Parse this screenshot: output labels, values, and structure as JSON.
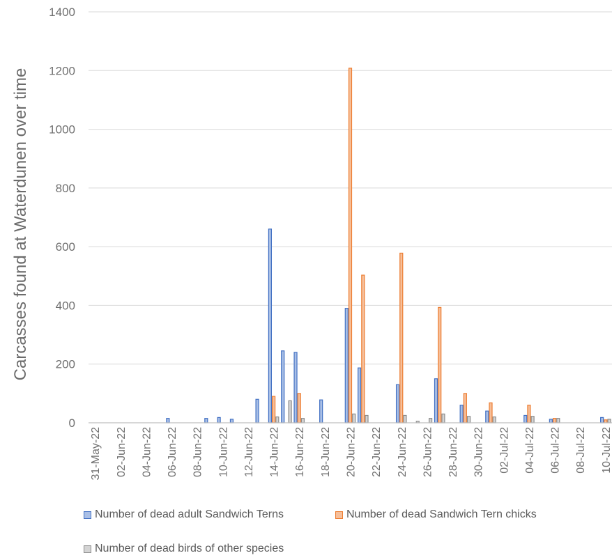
{
  "chart_data": {
    "type": "bar",
    "ylabel": "Carcasses found at Waterdunen  over time",
    "xlabel": "",
    "ylim": [
      0,
      1400
    ],
    "yticks": [
      0,
      200,
      400,
      600,
      800,
      1000,
      1200,
      1400
    ],
    "grid": true,
    "legend_position": "bottom",
    "x_tick_labels": [
      "31-May-22",
      "02-Jun-22",
      "04-Jun-22",
      "06-Jun-22",
      "08-Jun-22",
      "10-Jun-22",
      "12-Jun-22",
      "14-Jun-22",
      "16-Jun-22",
      "18-Jun-22",
      "20-Jun-22",
      "22-Jun-22",
      "24-Jun-22",
      "26-Jun-22",
      "28-Jun-22",
      "30-Jun-22",
      "02-Jul-22",
      "04-Jul-22",
      "06-Jul-22",
      "08-Jul-22",
      "10-Jul-22"
    ],
    "categories": [
      "31-May-22",
      "01-Jun-22",
      "02-Jun-22",
      "03-Jun-22",
      "04-Jun-22",
      "05-Jun-22",
      "06-Jun-22",
      "07-Jun-22",
      "08-Jun-22",
      "09-Jun-22",
      "10-Jun-22",
      "11-Jun-22",
      "12-Jun-22",
      "13-Jun-22",
      "14-Jun-22",
      "15-Jun-22",
      "16-Jun-22",
      "17-Jun-22",
      "18-Jun-22",
      "19-Jun-22",
      "20-Jun-22",
      "21-Jun-22",
      "22-Jun-22",
      "23-Jun-22",
      "24-Jun-22",
      "25-Jun-22",
      "26-Jun-22",
      "27-Jun-22",
      "28-Jun-22",
      "29-Jun-22",
      "30-Jun-22",
      "01-Jul-22",
      "02-Jul-22",
      "03-Jul-22",
      "04-Jul-22",
      "05-Jul-22",
      "06-Jul-22",
      "07-Jul-22",
      "08-Jul-22",
      "09-Jul-22",
      "10-Jul-22"
    ],
    "series": [
      {
        "name": "Number of dead adult Sandwich Terns",
        "color": "#4472C4",
        "values": [
          0,
          0,
          0,
          0,
          0,
          0,
          15,
          0,
          0,
          15,
          18,
          12,
          0,
          80,
          660,
          245,
          240,
          0,
          78,
          0,
          390,
          187,
          0,
          0,
          130,
          0,
          0,
          150,
          0,
          60,
          0,
          40,
          0,
          0,
          25,
          0,
          12,
          0,
          0,
          0,
          18
        ]
      },
      {
        "name": "Number of dead Sandwich Tern chicks",
        "color": "#ED7D31",
        "values": [
          0,
          0,
          0,
          0,
          0,
          0,
          0,
          0,
          0,
          0,
          0,
          0,
          0,
          0,
          90,
          0,
          100,
          0,
          0,
          0,
          1208,
          503,
          0,
          0,
          578,
          0,
          0,
          393,
          0,
          100,
          0,
          68,
          0,
          0,
          60,
          0,
          15,
          0,
          0,
          0,
          10
        ]
      },
      {
        "name": "Number of dead birds of other species",
        "color": "#A5A5A5",
        "values": [
          0,
          0,
          0,
          0,
          0,
          0,
          0,
          0,
          0,
          0,
          0,
          0,
          0,
          0,
          20,
          75,
          15,
          0,
          0,
          0,
          30,
          25,
          0,
          0,
          25,
          5,
          15,
          30,
          0,
          22,
          0,
          20,
          0,
          0,
          22,
          0,
          15,
          0,
          0,
          0,
          12
        ]
      }
    ]
  }
}
